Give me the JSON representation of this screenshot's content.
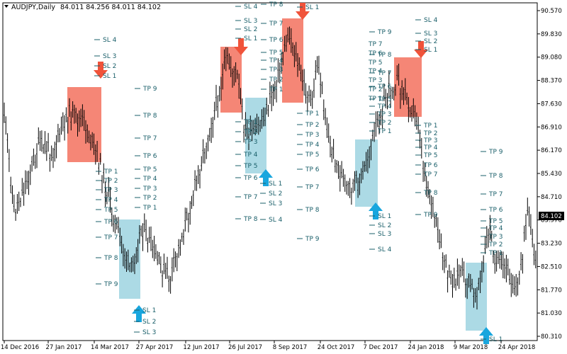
{
  "header": {
    "symbol": "AUDJPY,Daily",
    "ohlc": "84.011 84.256 84.011 84.102",
    "dropdown_icon": "triangle-down-icon"
  },
  "colors": {
    "sell_box": "#f4806f",
    "buy_box": "#a8d8e4",
    "sell_arrow": "#f0533a",
    "buy_arrow": "#18a6de",
    "label": "#1a5f6a",
    "candle": "#000000",
    "price_tag_bg": "#000000",
    "price_tag_text": "#ffffff"
  },
  "price_axis": {
    "ticks": [
      "90.570",
      "89.830",
      "89.080",
      "88.370",
      "87.630",
      "86.910",
      "86.170",
      "85.430",
      "84.710",
      "83.970",
      "83.230",
      "82.510",
      "81.770",
      "81.030",
      "80.310"
    ],
    "current_price": "84.102"
  },
  "time_axis": {
    "ticks": [
      "14 Dec 2016",
      "27 Jan 2017",
      "14 Mar 2017",
      "27 Apr 2017",
      "12 Jun 2017",
      "26 Jul 2017",
      "8 Sep 2017",
      "24 Oct 2017",
      "7 Dec 2017",
      "24 Jan 2018",
      "9 Mar 2018",
      "24 Apr 2018"
    ]
  },
  "signals": [
    {
      "id": "sig-a",
      "direction": "sell",
      "sl": [
        "SL 4",
        "SL 3",
        "SL 2",
        "SL 1"
      ],
      "tp": [
        "TP 1",
        "TP 2",
        "TP 3",
        "TP 4",
        "TP 5",
        "TP 6",
        "TP 7",
        "TP 8",
        "TP 9"
      ]
    },
    {
      "id": "sig-b",
      "direction": "buy",
      "tp": [
        "TP 9",
        "TP 8",
        "TP 7",
        "TP 6",
        "TP 5",
        "TP 4",
        "TP 3",
        "TP 2",
        "TP 1"
      ],
      "sl": [
        "SL 1",
        "SL 2",
        "SL 3"
      ]
    },
    {
      "id": "sig-c",
      "direction": "sell",
      "sl": [
        "SL 4",
        "SL 3",
        "SL 2",
        "SL 1"
      ],
      "tp": [
        "TP 1",
        "TP 2",
        "TP 3",
        "TP 4",
        "TP 5",
        "TP 6",
        "TP 7",
        "TP 8",
        "TP 9"
      ]
    },
    {
      "id": "sig-d",
      "direction": "buy",
      "tp": [
        "TP 8",
        "TP 7",
        "TP 6",
        "TP 5",
        "TP 4",
        "TP 3",
        "TP 2",
        "TP 1"
      ],
      "sl": [
        "SL 1",
        "SL 2",
        "SL 3",
        "SL 4"
      ]
    },
    {
      "id": "sig-e",
      "direction": "sell",
      "sl": [
        "SL 1"
      ],
      "tp": [
        "TP 7",
        "TP 6",
        "TP 5",
        "TP 4",
        "TP 3",
        "TP 2",
        "TP 1",
        "TP 1",
        "TP 2",
        "TP 3",
        "TP 4",
        "TP 5",
        "TP 6",
        "TP 7",
        "TP 8",
        "TP 9"
      ]
    },
    {
      "id": "sig-f",
      "direction": "buy",
      "tp": [
        "TP 9",
        "TP 8",
        "TP 7",
        "TP 6",
        "TP 5",
        "TP 4",
        "TP 3",
        "TP 2",
        "TP 1"
      ],
      "sl": [
        "SL 1",
        "SL 2",
        "SL 3",
        "SL 4"
      ]
    },
    {
      "id": "sig-g",
      "direction": "sell",
      "sl": [
        "SL 4",
        "SL 3",
        "SL 2",
        "SL 1"
      ],
      "tp": [
        "TP 1",
        "TP 2",
        "TP 3",
        "TP 4",
        "TP 5",
        "TP 6",
        "TP 7",
        "TP 8",
        "TP 9"
      ]
    },
    {
      "id": "sig-h",
      "direction": "buy",
      "tp": [
        "TP 9",
        "TP 8",
        "TP 7",
        "TP 6",
        "TP 5",
        "TP 4",
        "TP 3",
        "TP 2",
        "TP 1"
      ],
      "sl": [
        "SL 1"
      ]
    }
  ]
}
